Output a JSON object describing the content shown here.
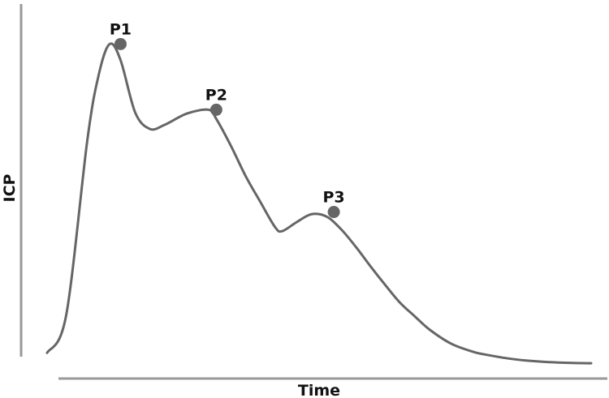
{
  "chart_data": {
    "type": "line",
    "xlabel": "Time",
    "ylabel": "ICP",
    "xlim": [
      0,
      100
    ],
    "ylim": [
      0,
      100
    ],
    "grid": false,
    "series": [
      {
        "x": [
          0,
          3.5,
          7.4,
          9.5,
          11.5,
          13.5,
          16.2,
          18.9,
          21.6,
          25.7,
          29.7,
          31.1,
          33.8,
          36.5,
          39.2,
          41.9,
          43.2,
          45.9,
          48.6,
          51.4,
          54.1,
          56.8,
          59.5,
          62.2,
          64.9,
          67.6,
          70.3,
          74.3,
          78.4,
          81.1,
          84.5,
          87.8,
          91.9,
          96.6,
          100
        ],
        "y": [
          1.2,
          13.1,
          68.9,
          89.7,
          99.4,
          94.3,
          77.6,
          72.4,
          73.7,
          77.3,
          78.5,
          75.6,
          67.0,
          57.4,
          49.2,
          41.2,
          39.9,
          42.8,
          45.3,
          44.5,
          40.4,
          34.8,
          28.6,
          22.7,
          17.1,
          12.8,
          8.6,
          4.1,
          1.5,
          0.5,
          -0.5,
          -1.2,
          -1.7,
          -2.0,
          -2.1
        ]
      }
    ],
    "annotations": [
      {
        "label": "P1",
        "x": 13.5,
        "y": 99.4
      },
      {
        "label": "P2",
        "x": 31.1,
        "y": 78.5
      },
      {
        "label": "P3",
        "x": 52.7,
        "y": 46.0
      }
    ]
  }
}
